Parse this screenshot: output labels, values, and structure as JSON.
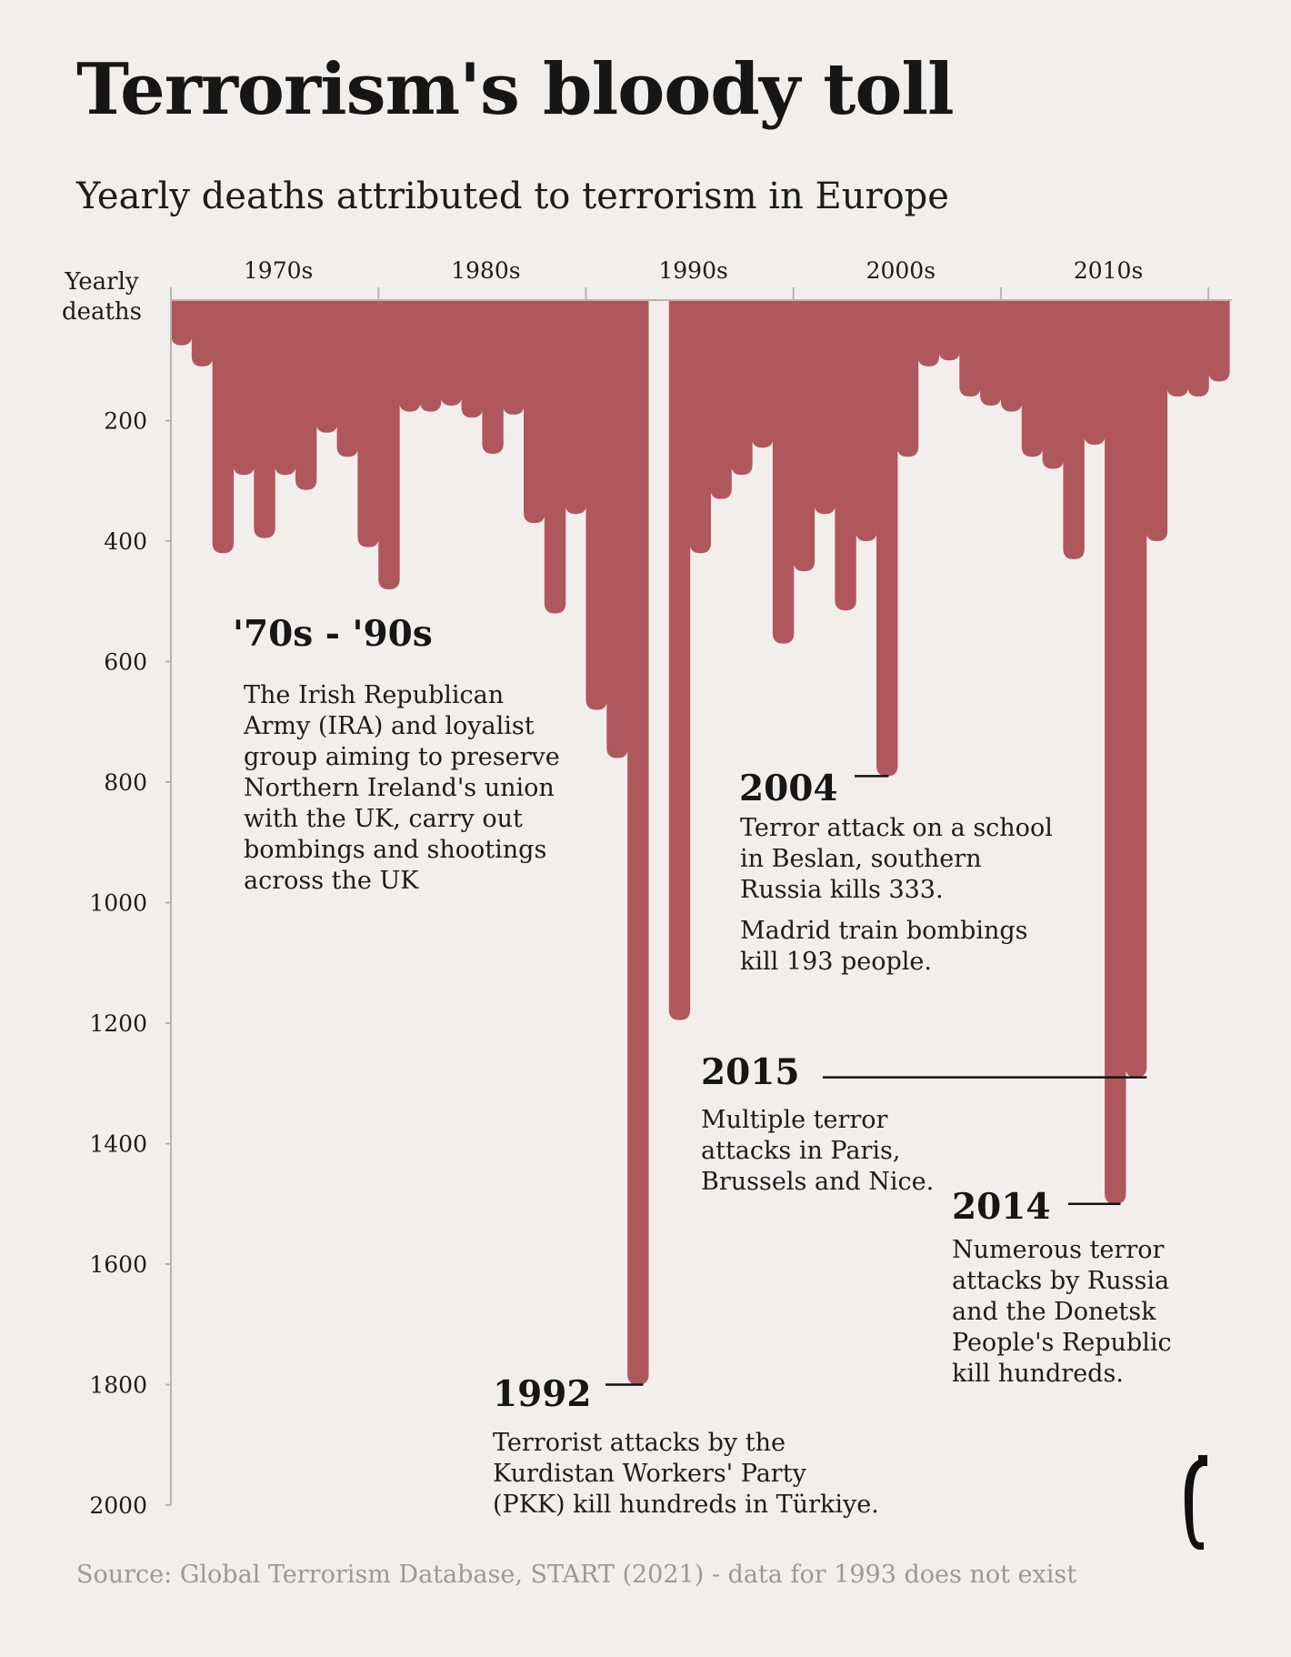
{
  "header": {
    "title": "Terrorism's bloody toll",
    "subtitle": "Yearly deaths attributed to terrorism in Europe"
  },
  "chart_data": {
    "type": "bar",
    "orientation": "inverted (bars hang down from top axis)",
    "ylabel": "Yearly deaths",
    "ylim": [
      0,
      2000
    ],
    "y_ticks": [
      "200",
      "400",
      "600",
      "800",
      "1000",
      "1200",
      "1400",
      "1600",
      "1800",
      "2000"
    ],
    "decade_labels": [
      "1970s",
      "1980s",
      "1990s",
      "2000s",
      "2010s"
    ],
    "bar_color": "#b0575d",
    "categories": [
      1970,
      1971,
      1972,
      1973,
      1974,
      1975,
      1976,
      1977,
      1978,
      1979,
      1980,
      1981,
      1982,
      1983,
      1984,
      1985,
      1986,
      1987,
      1988,
      1989,
      1990,
      1991,
      1992,
      1993,
      1994,
      1995,
      1996,
      1997,
      1998,
      1999,
      2000,
      2001,
      2002,
      2003,
      2004,
      2005,
      2006,
      2007,
      2008,
      2009,
      2010,
      2011,
      2012,
      2013,
      2014,
      2015,
      2016,
      2017,
      2018,
      2019,
      2020
    ],
    "values": [
      75,
      110,
      420,
      290,
      395,
      290,
      315,
      220,
      260,
      410,
      480,
      185,
      185,
      175,
      195,
      255,
      190,
      370,
      520,
      355,
      680,
      760,
      1800,
      null,
      1195,
      420,
      330,
      290,
      245,
      570,
      450,
      355,
      515,
      400,
      790,
      260,
      110,
      100,
      160,
      175,
      185,
      260,
      280,
      430,
      240,
      1500,
      1290,
      400,
      160,
      160,
      135
    ]
  },
  "annotations": [
    {
      "heading": "'70s - '90s",
      "text": "The Irish Republican\nArmy (IRA) and loyalist\ngroup aiming to preserve\nNorthern Ireland's union\nwith the UK, carry out\nbombings and shootings\nacross the UK"
    },
    {
      "heading": "2004",
      "text": "Terror attack on a school\nin Beslan, southern\nRussia kills 333.",
      "text2": "Madrid train bombings\nkill 193 people."
    },
    {
      "heading": "2015",
      "text": "Multiple terror\nattacks in Paris,\nBrussels and Nice."
    },
    {
      "heading": "2014",
      "text": "Numerous terror\nattacks by Russia\nand the Donetsk\nPeople's Republic\nkill hundreds."
    },
    {
      "heading": "1992",
      "text": "Terrorist attacks by the\nKurdistan Workers' Party\n(PKK) kill hundreds in Türkiye."
    }
  ],
  "footer": {
    "source": "Source: Global Terrorism Database, START (2021) - data for 1993 does not exist"
  },
  "logo": {
    "icon": "economist-style-e-icon",
    "color": "#111111"
  }
}
